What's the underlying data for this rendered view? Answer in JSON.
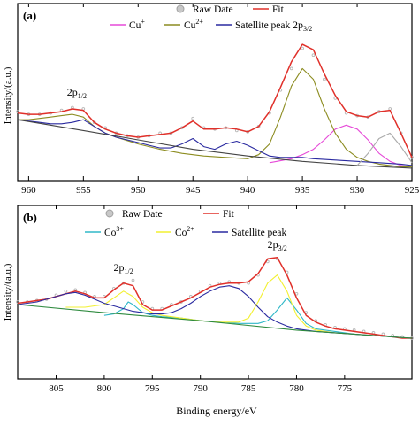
{
  "figure": {
    "xlabel": "Binding energy/eV"
  },
  "chart_data": [
    {
      "type": "line",
      "panel_label": "(a)",
      "ylabel": "Intensity/(a.u.)",
      "xlim": [
        961,
        925
      ],
      "ylim": [
        0,
        1
      ],
      "xticks": [
        960,
        955,
        950,
        945,
        940,
        935,
        930,
        925
      ],
      "legend": {
        "placement": "top",
        "entries": [
          {
            "label": "Raw Date",
            "color": "#b8b8b8",
            "marker": "circle"
          },
          {
            "label": "Fit",
            "color": "#e0302a",
            "marker": "line"
          },
          {
            "label": "Cu",
            "sup": "+",
            "color": "#e64ad8",
            "marker": "line"
          },
          {
            "label": "Cu",
            "sup": "2+",
            "color": "#8c8c20",
            "marker": "line"
          },
          {
            "label": "Satellite peak",
            "color": "#2a2aa0",
            "marker": "line"
          }
        ]
      },
      "annotations": [
        {
          "text": "2p",
          "sub": "1/2",
          "x": 955.6,
          "y": 0.58
        },
        {
          "text": "2p",
          "sub": "3/2",
          "x": 935.0,
          "y": 1.08
        }
      ],
      "series": [
        {
          "name": "Raw Date",
          "color": "#b8b8b8",
          "style": "dots",
          "x": [
            961,
            960,
            959,
            958,
            957,
            956,
            955,
            954,
            953,
            952,
            951,
            950,
            949,
            948,
            947,
            946,
            945,
            944,
            943,
            942,
            941,
            940,
            939,
            938,
            937,
            936,
            935,
            934,
            933,
            932,
            931,
            930,
            929,
            928,
            927,
            926,
            925
          ],
          "y": [
            0.46,
            0.44,
            0.44,
            0.45,
            0.47,
            0.49,
            0.48,
            0.38,
            0.34,
            0.3,
            0.28,
            0.27,
            0.28,
            0.3,
            0.3,
            0.34,
            0.41,
            0.34,
            0.33,
            0.34,
            0.32,
            0.31,
            0.35,
            0.45,
            0.62,
            0.78,
            0.93,
            0.88,
            0.7,
            0.56,
            0.45,
            0.43,
            0.42,
            0.46,
            0.48,
            0.3,
            0.12
          ]
        },
        {
          "name": "Fit",
          "color": "#e0302a",
          "x": [
            961,
            960,
            959,
            958,
            957,
            956,
            955,
            954,
            953,
            952,
            951,
            950,
            949,
            948,
            947,
            946,
            945,
            944,
            943,
            942,
            941,
            940,
            939,
            938,
            937,
            936,
            935,
            934,
            933,
            932,
            931,
            930,
            929,
            928,
            927,
            926,
            925
          ],
          "y": [
            0.45,
            0.44,
            0.44,
            0.45,
            0.46,
            0.48,
            0.47,
            0.38,
            0.33,
            0.3,
            0.28,
            0.27,
            0.28,
            0.29,
            0.3,
            0.34,
            0.39,
            0.33,
            0.33,
            0.34,
            0.33,
            0.31,
            0.35,
            0.46,
            0.64,
            0.83,
            0.96,
            0.92,
            0.74,
            0.58,
            0.46,
            0.43,
            0.42,
            0.46,
            0.47,
            0.3,
            0.12
          ]
        },
        {
          "name": "Cu+",
          "color": "#e64ad8",
          "x": [
            938,
            936,
            935,
            934,
            933,
            932,
            931,
            930,
            929,
            928,
            927,
            926,
            925
          ],
          "y": [
            0.08,
            0.11,
            0.14,
            0.18,
            0.25,
            0.33,
            0.36,
            0.33,
            0.25,
            0.15,
            0.09,
            0.06,
            0.05
          ]
        },
        {
          "name": "Cu2+",
          "color": "#8c8c20",
          "x": [
            961,
            960,
            959,
            958,
            957,
            956,
            955,
            954,
            953,
            952,
            950,
            948,
            946,
            944,
            942,
            940,
            939,
            938,
            937,
            936,
            935,
            934,
            933,
            932,
            931,
            930,
            929,
            928,
            926,
            925
          ],
          "y": [
            0.4,
            0.4,
            0.41,
            0.42,
            0.43,
            0.44,
            0.42,
            0.35,
            0.3,
            0.27,
            0.22,
            0.18,
            0.15,
            0.13,
            0.12,
            0.11,
            0.14,
            0.22,
            0.42,
            0.65,
            0.78,
            0.7,
            0.48,
            0.3,
            0.18,
            0.12,
            0.09,
            0.07,
            0.05,
            0.05
          ]
        },
        {
          "name": "Satellite peak",
          "color": "#2a2aa0",
          "x": [
            961,
            960,
            959,
            958,
            957,
            956,
            955,
            954,
            953,
            952,
            951,
            950,
            949,
            948,
            947,
            946,
            945,
            944,
            943,
            942,
            941,
            940,
            939,
            938,
            937,
            936,
            935,
            934,
            932,
            930,
            928,
            926,
            925
          ],
          "y": [
            0.4,
            0.39,
            0.38,
            0.37,
            0.37,
            0.38,
            0.4,
            0.35,
            0.3,
            0.27,
            0.25,
            0.23,
            0.21,
            0.19,
            0.19,
            0.22,
            0.26,
            0.2,
            0.18,
            0.22,
            0.24,
            0.21,
            0.17,
            0.13,
            0.12,
            0.12,
            0.12,
            0.11,
            0.1,
            0.09,
            0.08,
            0.07,
            0.06
          ]
        },
        {
          "name": "Background",
          "color": "#444444",
          "x": [
            961,
            955,
            950,
            945,
            940,
            935,
            930,
            925
          ],
          "y": [
            0.4,
            0.32,
            0.25,
            0.18,
            0.13,
            0.09,
            0.06,
            0.04
          ]
        },
        {
          "name": "Low sub-peak",
          "color": "#aaaaaa",
          "x": [
            930,
            929,
            928,
            927,
            926,
            925
          ],
          "y": [
            0.06,
            0.15,
            0.26,
            0.3,
            0.2,
            0.08
          ]
        }
      ]
    },
    {
      "type": "line",
      "panel_label": "(b)",
      "ylabel": "Intensity/(a.u.)",
      "xlim": [
        809,
        768
      ],
      "ylim": [
        0,
        1
      ],
      "xticks": [
        805,
        800,
        795,
        790,
        785,
        780,
        775
      ],
      "legend": {
        "placement": "top",
        "entries": [
          {
            "label": "Raw Date",
            "color": "#b8b8b8",
            "marker": "circle"
          },
          {
            "label": "Fit",
            "color": "#e0302a",
            "marker": "line"
          },
          {
            "label": "Co",
            "sup": "3+",
            "color": "#30b8c8",
            "marker": "line"
          },
          {
            "label": "Co",
            "sup": "2+",
            "color": "#f2f030",
            "marker": "line"
          },
          {
            "label": "Satellite peak",
            "color": "#2a2aa0",
            "marker": "line"
          }
        ]
      },
      "annotations": [
        {
          "text": "2p",
          "sub": "1/2",
          "x": 798.0,
          "y": 0.75
        },
        {
          "text": "2p",
          "sub": "3/2",
          "x": 782.0,
          "y": 0.92
        }
      ],
      "series": [
        {
          "name": "Raw Date",
          "color": "#b8b8b8",
          "style": "dots",
          "x": [
            809,
            808,
            807,
            806,
            805,
            804,
            803,
            802,
            801,
            800,
            799,
            798,
            797,
            796,
            795,
            794,
            793,
            792,
            791,
            790,
            789,
            788,
            787,
            786,
            785,
            784,
            783,
            782,
            781,
            780,
            779,
            778,
            777,
            776,
            775,
            774,
            773,
            772,
            771,
            770,
            769,
            768
          ],
          "y": [
            0.52,
            0.52,
            0.53,
            0.54,
            0.57,
            0.6,
            0.61,
            0.59,
            0.56,
            0.56,
            0.62,
            0.66,
            0.68,
            0.52,
            0.47,
            0.47,
            0.5,
            0.52,
            0.56,
            0.6,
            0.64,
            0.66,
            0.67,
            0.66,
            0.66,
            0.72,
            0.82,
            0.84,
            0.74,
            0.58,
            0.44,
            0.38,
            0.35,
            0.33,
            0.32,
            0.31,
            0.3,
            0.29,
            0.28,
            0.27,
            0.26,
            0.25
          ]
        },
        {
          "name": "Fit",
          "color": "#e0302a",
          "x": [
            809,
            808,
            807,
            806,
            805,
            804,
            803,
            802,
            801,
            800,
            799,
            798,
            797,
            796,
            795,
            794,
            793,
            792,
            791,
            790,
            789,
            788,
            787,
            786,
            785,
            784,
            783,
            782,
            781,
            780,
            779,
            778,
            777,
            776,
            775,
            774,
            773,
            772,
            771,
            770,
            769,
            768
          ],
          "y": [
            0.51,
            0.52,
            0.53,
            0.54,
            0.56,
            0.58,
            0.6,
            0.58,
            0.55,
            0.55,
            0.61,
            0.66,
            0.64,
            0.5,
            0.46,
            0.46,
            0.49,
            0.52,
            0.55,
            0.59,
            0.63,
            0.65,
            0.66,
            0.66,
            0.67,
            0.73,
            0.84,
            0.85,
            0.72,
            0.55,
            0.42,
            0.37,
            0.34,
            0.32,
            0.31,
            0.3,
            0.29,
            0.28,
            0.27,
            0.26,
            0.25,
            0.25
          ]
        },
        {
          "name": "Co3+",
          "color": "#30b8c8",
          "x": [
            800,
            799,
            798,
            797.5,
            797,
            796,
            795,
            794,
            792,
            790,
            788,
            786,
            784,
            783,
            782,
            781,
            780,
            779,
            778,
            776,
            774,
            772,
            770,
            768
          ],
          "y": [
            0.42,
            0.43,
            0.47,
            0.52,
            0.5,
            0.44,
            0.42,
            0.41,
            0.4,
            0.38,
            0.37,
            0.36,
            0.36,
            0.38,
            0.46,
            0.55,
            0.46,
            0.36,
            0.32,
            0.3,
            0.28,
            0.27,
            0.26,
            0.25
          ]
        },
        {
          "name": "Co2+",
          "color": "#f2f030",
          "x": [
            804,
            802,
            800,
            799,
            798,
            797,
            796,
            795,
            794,
            792,
            790,
            788,
            786,
            785,
            784,
            783,
            782,
            781,
            780,
            779,
            778,
            776,
            774,
            772,
            770,
            768
          ],
          "y": [
            0.48,
            0.48,
            0.5,
            0.55,
            0.6,
            0.56,
            0.48,
            0.44,
            0.42,
            0.4,
            0.38,
            0.37,
            0.37,
            0.4,
            0.52,
            0.66,
            0.72,
            0.6,
            0.42,
            0.34,
            0.31,
            0.29,
            0.28,
            0.27,
            0.26,
            0.25
          ]
        },
        {
          "name": "Satellite peak",
          "color": "#2a2aa0",
          "x": [
            809,
            808,
            807,
            806,
            805,
            804,
            803,
            802,
            801,
            800,
            799,
            798,
            797,
            796,
            795,
            794,
            793,
            792,
            791,
            790,
            789,
            788,
            787,
            786,
            785,
            784,
            783,
            782,
            781,
            780,
            779,
            778,
            776,
            774,
            772,
            770,
            768
          ],
          "y": [
            0.5,
            0.51,
            0.52,
            0.54,
            0.56,
            0.58,
            0.59,
            0.57,
            0.54,
            0.51,
            0.49,
            0.47,
            0.45,
            0.44,
            0.43,
            0.43,
            0.44,
            0.47,
            0.51,
            0.56,
            0.6,
            0.63,
            0.64,
            0.62,
            0.56,
            0.48,
            0.41,
            0.37,
            0.34,
            0.32,
            0.31,
            0.3,
            0.29,
            0.28,
            0.27,
            0.26,
            0.25
          ]
        },
        {
          "name": "Background",
          "color": "#2e8a3e",
          "x": [
            809,
            800,
            790,
            780,
            770,
            768
          ],
          "y": [
            0.5,
            0.44,
            0.38,
            0.31,
            0.26,
            0.25
          ]
        }
      ]
    }
  ]
}
